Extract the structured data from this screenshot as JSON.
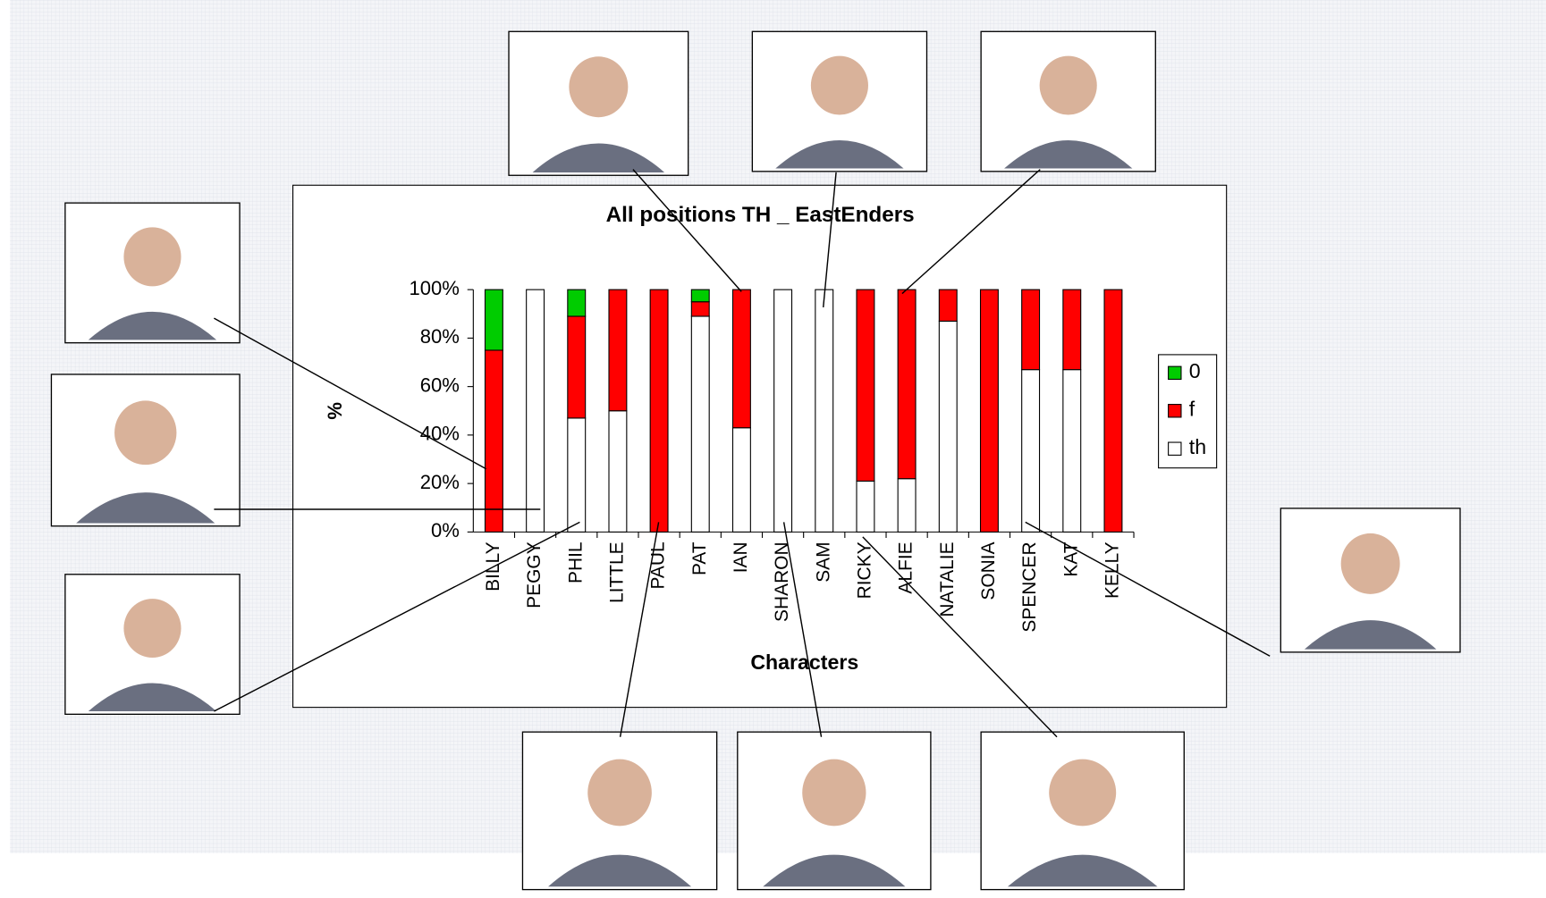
{
  "chart_data": {
    "type": "stacked_bar_100",
    "title": "All positions TH _ EastEnders",
    "y_label": "%",
    "x_label": "Characters",
    "categories": [
      "BILLY",
      "PEGGY",
      "PHIL",
      "LITTLE",
      "PAUL",
      "PAT",
      "IAN",
      "SHARON",
      "SAM",
      "RICKY",
      "ALFIE",
      "NATALIE",
      "SONIA",
      "SPENCER",
      "KAT",
      "KELLY"
    ],
    "series": [
      {
        "name": "0",
        "color": "#00cc00",
        "values": [
          25,
          0,
          11,
          0,
          0,
          5,
          0,
          0,
          0,
          0,
          0,
          0,
          0,
          0,
          0,
          0
        ]
      },
      {
        "name": "f",
        "color": "#ff0000",
        "values": [
          75,
          0,
          42,
          50,
          100,
          6,
          57,
          0,
          0,
          79,
          78,
          13,
          100,
          33,
          33,
          100
        ]
      },
      {
        "name": "th",
        "color": "#ffffff",
        "values": [
          0,
          100,
          47,
          50,
          0,
          89,
          43,
          100,
          100,
          21,
          22,
          87,
          0,
          67,
          67,
          0
        ]
      }
    ],
    "ylim": [
      0,
      100
    ],
    "yticks": [
      {
        "value": 0,
        "label": "0%"
      },
      {
        "value": 20,
        "label": "20%"
      },
      {
        "value": 40,
        "label": "40%"
      },
      {
        "value": 60,
        "label": "60%"
      },
      {
        "value": 80,
        "label": "80%"
      },
      {
        "value": 100,
        "label": "100%"
      }
    ],
    "legend": "right"
  }
}
